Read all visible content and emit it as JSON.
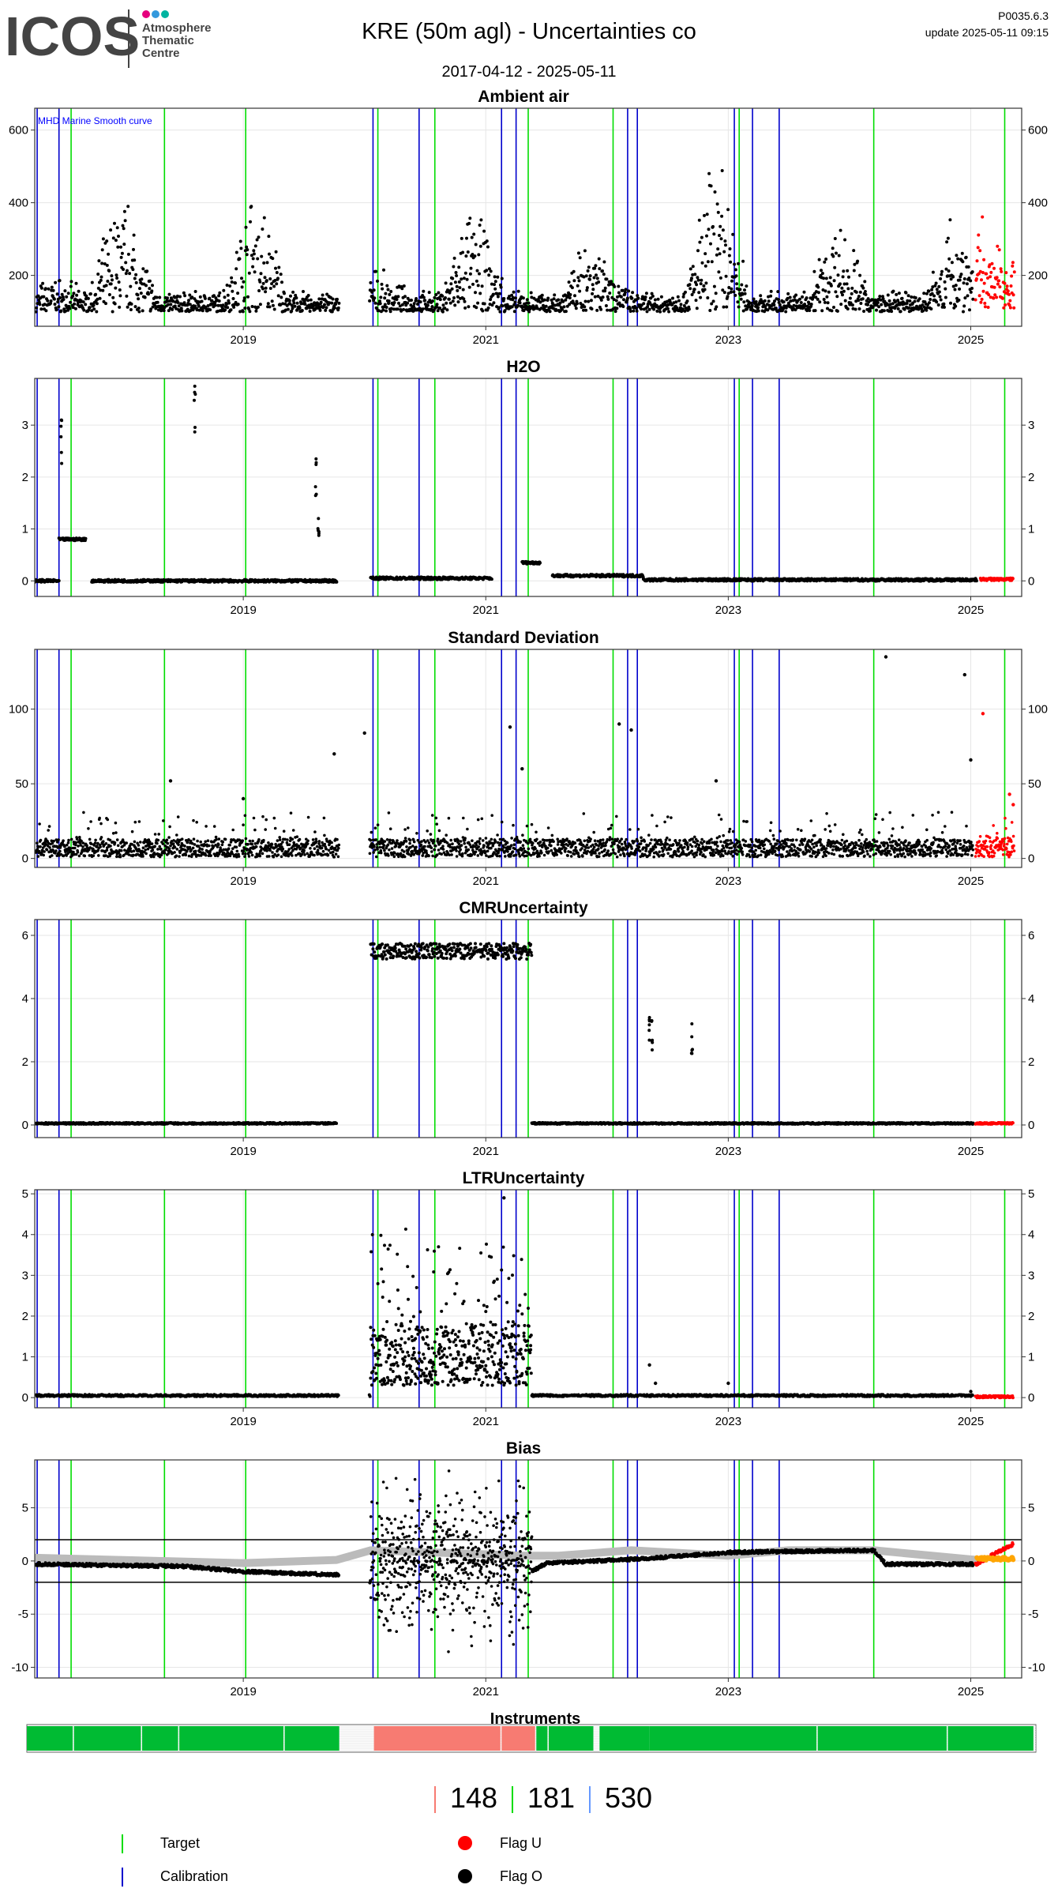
{
  "header": {
    "logo_text": "ICOS",
    "logo_sub": [
      "Atmosphere",
      "Thematic",
      "Centre"
    ],
    "title": "KRE  (50m agl) - Uncertainties co",
    "subtitle": "2017-04-12 - 2025-05-11",
    "version": "P0035.6.3",
    "update": "update  2025-05-11 09:15"
  },
  "colors": {
    "target": "#00dd00",
    "calibration": "#0000cc",
    "flag_u": "#ff0000",
    "flag_o": "#000000",
    "instrument_ok": "#00bb33",
    "instrument_alt": "#f77b72",
    "bias_model": "#bbbbbb",
    "bias_flag": "#ffa500"
  },
  "chart_data": [
    {
      "type": "scatter",
      "title": "Ambient air",
      "annotation": "MHD Marine Smooth curve",
      "x_range": [
        "2017-04-12",
        "2025-05-11"
      ],
      "x_ticks": [
        "2019",
        "2021",
        "2023",
        "2025"
      ],
      "y_ticks": [
        200,
        400,
        600
      ],
      "ylim": [
        60,
        660
      ],
      "grid": true,
      "series": [
        {
          "name": "Flag O",
          "color": "#000000",
          "pattern": "seasonal",
          "baseline": 130,
          "peaks": [
            [
              2017.45,
              180
            ],
            [
              2018.0,
              470
            ],
            [
              2019.1,
              490
            ],
            [
              2020.1,
              200
            ],
            [
              2020.9,
              420
            ],
            [
              2021.9,
              360
            ],
            [
              2022.9,
              580
            ],
            [
              2023.9,
              390
            ],
            [
              2024.9,
              430
            ]
          ],
          "x_end": 2025.02
        },
        {
          "name": "Flag U",
          "color": "#ff0000",
          "pattern": "seasonal",
          "baseline": 140,
          "peaks": [
            [
              2025.08,
              360
            ],
            [
              2025.25,
              300
            ]
          ],
          "x_start": 2025.04
        }
      ]
    },
    {
      "type": "scatter",
      "title": "H2O",
      "x_range": [
        "2017-04-12",
        "2025-05-11"
      ],
      "x_ticks": [
        "2019",
        "2021",
        "2023",
        "2025"
      ],
      "y_ticks": [
        0,
        1,
        2,
        3
      ],
      "ylim": [
        -0.3,
        3.9
      ],
      "grid": true,
      "series": [
        {
          "name": "Flag O",
          "color": "#000000",
          "pattern": "level",
          "baseline": 0.0,
          "segments": [
            [
              2017.28,
              2017.48,
              0.0
            ],
            [
              2017.48,
              2017.7,
              0.8
            ],
            [
              2017.75,
              2019.77,
              0.0
            ],
            [
              2020.05,
              2021.05,
              0.05
            ],
            [
              2021.3,
              2021.45,
              0.35
            ],
            [
              2021.55,
              2022.3,
              0.1
            ],
            [
              2022.3,
              2025.05,
              0.02
            ]
          ],
          "spikes": [
            [
              2017.5,
              3.1
            ],
            [
              2018.6,
              3.75
            ],
            [
              2019.6,
              2.35
            ],
            [
              2019.62,
              1.2
            ]
          ]
        },
        {
          "name": "Flag U",
          "color": "#ff0000",
          "pattern": "level",
          "baseline": 0.0,
          "segments": [
            [
              2025.08,
              2025.35,
              0.03
            ]
          ]
        }
      ]
    },
    {
      "type": "scatter",
      "title": "Standard Deviation",
      "x_range": [
        "2017-04-12",
        "2025-05-11"
      ],
      "x_ticks": [
        "2019",
        "2021",
        "2023",
        "2025"
      ],
      "y_ticks": [
        0,
        50,
        100
      ],
      "ylim": [
        -6,
        140
      ],
      "grid": true,
      "series": [
        {
          "name": "Flag O",
          "color": "#000000",
          "pattern": "noise",
          "baseline": 5,
          "spread": 12,
          "spikes": [
            [
              2018.4,
              52
            ],
            [
              2019.0,
              40
            ],
            [
              2019.75,
              70
            ],
            [
              2020.0,
              84
            ],
            [
              2021.2,
              88
            ],
            [
              2021.3,
              60
            ],
            [
              2022.1,
              90
            ],
            [
              2022.2,
              86
            ],
            [
              2022.9,
              52
            ],
            [
              2024.3,
              135
            ],
            [
              2024.95,
              123
            ],
            [
              2025.0,
              66
            ]
          ],
          "x_end": 2025.02
        },
        {
          "name": "Flag U",
          "color": "#ff0000",
          "pattern": "noise",
          "baseline": 5,
          "spread": 14,
          "spikes": [
            [
              2025.1,
              97
            ],
            [
              2025.32,
              43
            ],
            [
              2025.35,
              36
            ]
          ],
          "x_start": 2025.04
        }
      ]
    },
    {
      "type": "scatter",
      "title": "CMRUncertainty",
      "x_range": [
        "2017-04-12",
        "2025-05-11"
      ],
      "x_ticks": [
        "2019",
        "2021",
        "2023",
        "2025"
      ],
      "y_ticks": [
        0,
        2,
        4,
        6
      ],
      "ylim": [
        -0.4,
        6.5
      ],
      "grid": true,
      "series": [
        {
          "name": "Flag O",
          "color": "#000000",
          "pattern": "level",
          "baseline": 0.05,
          "segments": [
            [
              2017.28,
              2019.77,
              0.05
            ],
            [
              2020.05,
              2021.38,
              5.5
            ],
            [
              2021.38,
              2025.02,
              0.05
            ]
          ],
          "spikes": [
            [
              2022.35,
              3.4
            ],
            [
              2022.37,
              3.3
            ],
            [
              2022.7,
              3.2
            ]
          ]
        },
        {
          "name": "Flag U",
          "color": "#ff0000",
          "pattern": "level",
          "baseline": 0.05,
          "segments": [
            [
              2025.04,
              2025.35,
              0.05
            ]
          ]
        }
      ]
    },
    {
      "type": "scatter",
      "title": "LTRUncertainty",
      "x_range": [
        "2017-04-12",
        "2025-05-11"
      ],
      "x_ticks": [
        "2019",
        "2021",
        "2023",
        "2025"
      ],
      "y_ticks": [
        0,
        1,
        2,
        3,
        4,
        5
      ],
      "ylim": [
        -0.25,
        5.1
      ],
      "grid": true,
      "series": [
        {
          "name": "Flag O",
          "color": "#000000",
          "pattern": "burst",
          "baseline": 0.05,
          "burst": [
            2020.05,
            2021.38,
            0.3,
            4.6
          ],
          "spikes": [
            [
              2021.15,
              4.9
            ],
            [
              2022.35,
              0.8
            ],
            [
              2022.4,
              0.35
            ],
            [
              2023.0,
              0.35
            ],
            [
              2025.0,
              0.15
            ]
          ],
          "x_end": 2025.02
        },
        {
          "name": "Flag U",
          "color": "#ff0000",
          "pattern": "level",
          "baseline": 0.0,
          "segments": [
            [
              2025.04,
              2025.35,
              0.02
            ]
          ]
        }
      ]
    },
    {
      "type": "scatter",
      "title": "Bias",
      "x_range": [
        "2017-04-12",
        "2025-05-11"
      ],
      "x_ticks": [
        "2019",
        "2021",
        "2023",
        "2025"
      ],
      "y_ticks": [
        -10,
        -5,
        0,
        5
      ],
      "ylim": [
        -11,
        9.5
      ],
      "hlines": [
        2,
        -2
      ],
      "grid": true,
      "series": [
        {
          "name": "model",
          "color": "#bbbbbb",
          "pattern": "band",
          "points": [
            [
              2017.28,
              0.3
            ],
            [
              2019.0,
              -0.2
            ],
            [
              2019.77,
              0.1
            ],
            [
              2020.05,
              1.0
            ],
            [
              2021.3,
              0.5
            ],
            [
              2021.6,
              0.5
            ],
            [
              2022.2,
              1.0
            ],
            [
              2023.0,
              0.5
            ],
            [
              2023.5,
              1.0
            ],
            [
              2024.2,
              1.0
            ],
            [
              2025.05,
              0.1
            ]
          ],
          "width": 10
        },
        {
          "name": "Flag O",
          "color": "#000000",
          "pattern": "bias",
          "points": [
            [
              2017.28,
              -0.3
            ],
            [
              2018.5,
              -0.5
            ],
            [
              2019.0,
              -1.0
            ],
            [
              2019.77,
              -1.3
            ],
            [
              2020.05,
              -2.0
            ],
            [
              2021.38,
              -1.0
            ],
            [
              2021.5,
              -0.2
            ],
            [
              2022.3,
              0.2
            ],
            [
              2023.0,
              0.8
            ],
            [
              2023.5,
              0.9
            ],
            [
              2024.2,
              1.0
            ],
            [
              2024.3,
              -0.3
            ],
            [
              2025.02,
              -0.3
            ]
          ],
          "burst": [
            2020.05,
            2021.38,
            -9,
            8.5
          ]
        },
        {
          "name": "Flag U",
          "color": "#ff0000",
          "pattern": "bias",
          "points": [
            [
              2025.04,
              -0.3
            ],
            [
              2025.35,
              1.6
            ]
          ]
        },
        {
          "name": "flag",
          "color": "#ffa500",
          "pattern": "bias",
          "points": [
            [
              2025.05,
              0.2
            ],
            [
              2025.35,
              0.2
            ]
          ]
        }
      ]
    }
  ],
  "instruments": {
    "title": "Instruments",
    "x_ticks": [
      "2019",
      "2021",
      "2023",
      "2025"
    ],
    "segments": [
      {
        "start": 2017.28,
        "end": 2017.65,
        "color": "#00bb33"
      },
      {
        "start": 2017.66,
        "end": 2018.2,
        "color": "#00bb33"
      },
      {
        "start": 2018.21,
        "end": 2018.5,
        "color": "#00bb33"
      },
      {
        "start": 2018.51,
        "end": 2019.35,
        "color": "#00bb33"
      },
      {
        "start": 2019.36,
        "end": 2019.8,
        "color": "#00bb33"
      },
      {
        "start": 2020.08,
        "end": 2021.1,
        "color": "#f77b72"
      },
      {
        "start": 2021.11,
        "end": 2021.38,
        "color": "#f77b72"
      },
      {
        "start": 2021.39,
        "end": 2021.48,
        "color": "#00bb33"
      },
      {
        "start": 2021.49,
        "end": 2021.85,
        "color": "#00bb33"
      },
      {
        "start": 2021.9,
        "end": 2022.3,
        "color": "#00bb33"
      },
      {
        "start": 2022.3,
        "end": 2023.65,
        "color": "#00bb33"
      },
      {
        "start": 2023.66,
        "end": 2024.7,
        "color": "#00bb33"
      },
      {
        "start": 2024.71,
        "end": 2025.4,
        "color": "#00bb33"
      }
    ]
  },
  "counts": [
    {
      "value": "148",
      "color": "#f77b72"
    },
    {
      "value": "181",
      "color": "#00dd00"
    },
    {
      "value": "530",
      "color": "#6699ff"
    }
  ],
  "legend": [
    {
      "label": "Target",
      "kind": "line",
      "color": "#00dd00"
    },
    {
      "label": "Calibration",
      "kind": "line",
      "color": "#0000cc"
    },
    {
      "label": "Flag U",
      "kind": "dot",
      "color": "#ff0000"
    },
    {
      "label": "Flag O",
      "kind": "dot",
      "color": "#000000"
    }
  ],
  "events": {
    "calibration": [
      2017.3,
      2017.48,
      2020.07,
      2020.45,
      2021.13,
      2021.25,
      2022.17,
      2022.25,
      2023.05,
      2023.2,
      2023.42
    ],
    "target": [
      2017.58,
      2018.35,
      2019.02,
      2020.11,
      2020.58,
      2021.35,
      2022.05,
      2023.09,
      2024.2,
      2025.28
    ]
  }
}
